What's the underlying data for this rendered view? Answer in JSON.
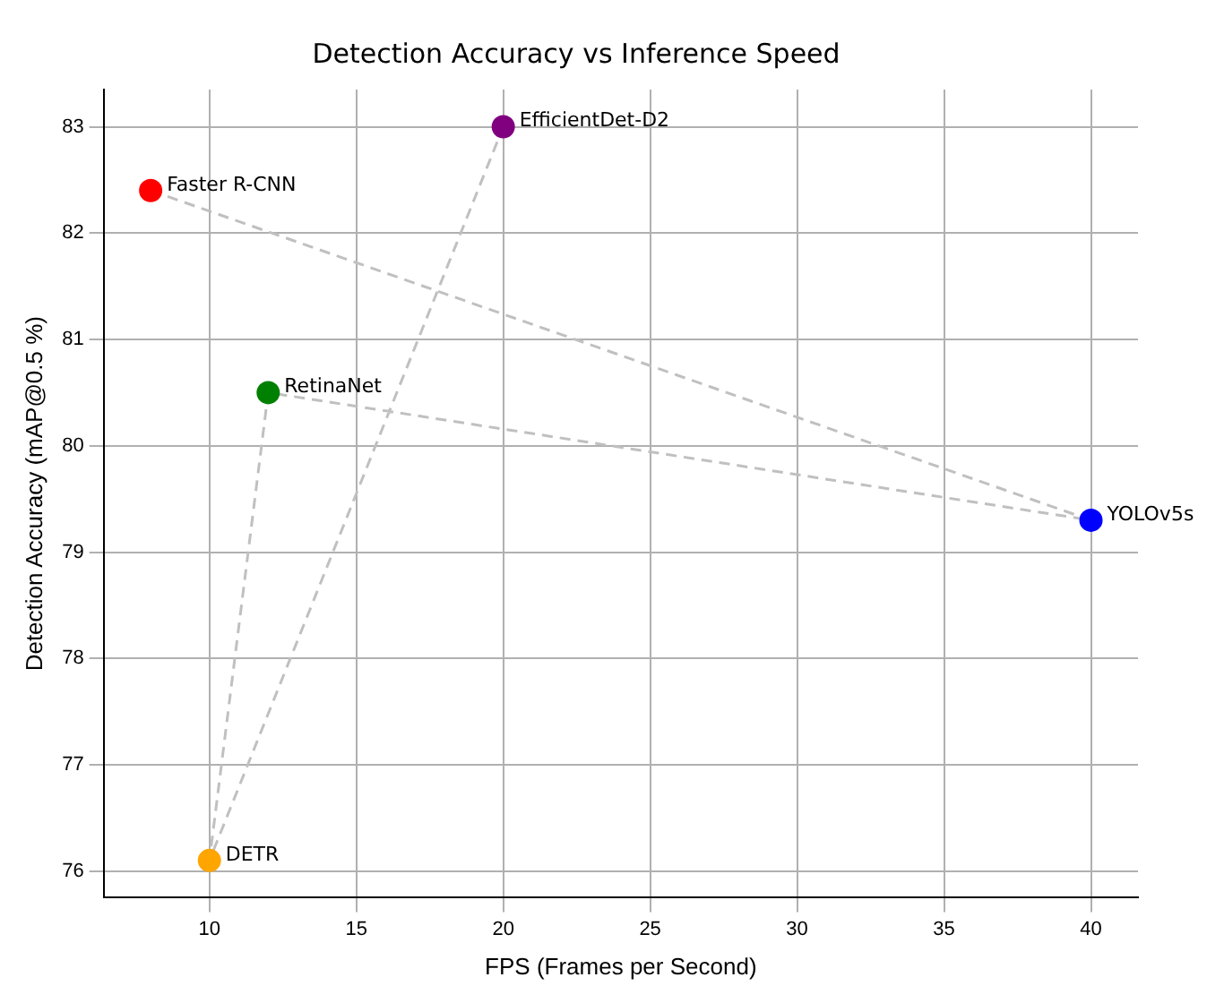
{
  "chart_data": {
    "type": "scatter",
    "title": "Detection Accuracy vs Inference Speed",
    "xlabel": "FPS (Frames per Second)",
    "ylabel": "Detection Accuracy (mAP@0.5 %)",
    "xlim": [
      6.4,
      41.6
    ],
    "xticks": [
      10,
      15,
      20,
      25,
      30,
      35,
      40
    ],
    "ylim": [
      75.75,
      83.35
    ],
    "yticks": [
      76,
      77,
      78,
      79,
      80,
      81,
      82,
      83
    ],
    "grid": true,
    "legend": false,
    "series": [
      {
        "type": "line",
        "x": [
          8,
          40,
          12,
          10,
          20
        ],
        "values": [
          82.4,
          79.3,
          80.5,
          76.1,
          83.0
        ],
        "color": "#c0c0c0",
        "line_style": "dashed"
      },
      {
        "name": "Faster R-CNN",
        "x": [
          8
        ],
        "values": [
          82.4
        ],
        "color": "#ff0000",
        "marker": "circle"
      },
      {
        "name": "YOLOv5s",
        "x": [
          40
        ],
        "values": [
          79.3
        ],
        "color": "#0000ff",
        "marker": "circle"
      },
      {
        "name": "RetinaNet",
        "x": [
          12
        ],
        "values": [
          80.5
        ],
        "color": "#008000",
        "marker": "circle"
      },
      {
        "name": "DETR",
        "x": [
          10
        ],
        "values": [
          76.1
        ],
        "color": "#ffa500",
        "marker": "circle"
      },
      {
        "name": "EfficientDet-D2",
        "x": [
          20
        ],
        "values": [
          83.0
        ],
        "color": "#800080",
        "marker": "circle"
      }
    ]
  }
}
